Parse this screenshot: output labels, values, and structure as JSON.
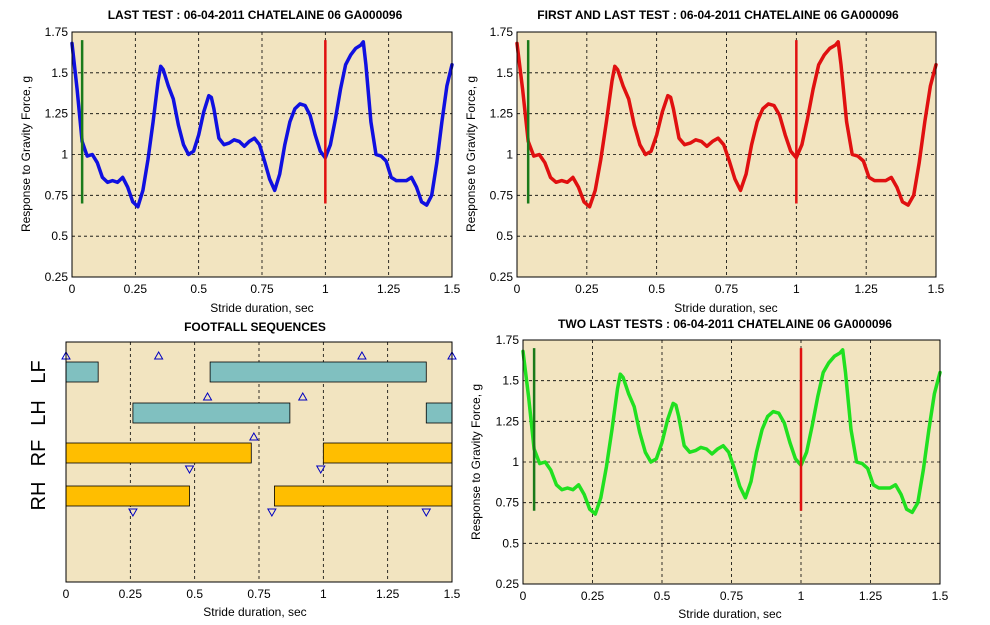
{
  "figure": {
    "background": "#ffffff",
    "plot_bg": "#f2e4c0",
    "grid_color": "#000000"
  },
  "chart_data": [
    {
      "id": "c1",
      "type": "line",
      "title": "LAST TEST : 06-04-2011 CHATELAINE 06 GA000096",
      "xlabel": "Stride duration, sec",
      "ylabel": "Response to Gravity Force, g",
      "xlim": [
        0,
        1.5
      ],
      "ylim": [
        0.25,
        1.75
      ],
      "xticks": [
        0,
        0.25,
        0.5,
        0.75,
        1,
        1.25,
        1.5
      ],
      "xtick_labels": [
        "0",
        "0.25",
        "0.5",
        "0.75",
        "1",
        "1.25",
        "1.5"
      ],
      "yticks": [
        0.25,
        0.5,
        0.75,
        1,
        1.25,
        1.5,
        1.75
      ],
      "ytick_labels": [
        "0.25",
        "0.5",
        "0.75",
        "1",
        "1.25",
        "1.5",
        "1.75"
      ],
      "grid": true,
      "series_color": "#1010e0",
      "markers": [
        {
          "x": 0.04,
          "y0": 0.7,
          "y1": 1.7,
          "color": "#1a7a1a"
        },
        {
          "x": 1.0,
          "y0": 0.7,
          "y1": 1.7,
          "color": "#e01010"
        }
      ]
    },
    {
      "id": "c2",
      "type": "line",
      "title": "FIRST AND LAST TEST : 06-04-2011 CHATELAINE 06 GA000096",
      "xlabel": "Stride duration, sec",
      "ylabel": "Response to Gravity Force, g",
      "xlim": [
        0,
        1.5
      ],
      "ylim": [
        0.25,
        1.75
      ],
      "xticks": [
        0,
        0.25,
        0.5,
        0.75,
        1,
        1.25,
        1.5
      ],
      "xtick_labels": [
        "0",
        "0.25",
        "0.5",
        "0.75",
        "1",
        "1.25",
        "1.5"
      ],
      "yticks": [
        0.25,
        0.5,
        0.75,
        1,
        1.25,
        1.5,
        1.75
      ],
      "ytick_labels": [
        "0.25",
        "0.5",
        "0.75",
        "1",
        "1.25",
        "1.5",
        "1.75"
      ],
      "grid": true,
      "series_color": "#e01010",
      "markers": [
        {
          "x": 0.04,
          "y0": 0.7,
          "y1": 1.7,
          "color": "#1a7a1a"
        },
        {
          "x": 1.0,
          "y0": 0.7,
          "y1": 1.7,
          "color": "#e01010"
        }
      ]
    },
    {
      "id": "c3",
      "type": "bar",
      "title": "FOOTFALL SEQUENCES",
      "xlabel": "Stride duration, sec",
      "xlim": [
        0,
        1.5
      ],
      "xticks": [
        0,
        0.25,
        0.5,
        0.75,
        1,
        1.25,
        1.5
      ],
      "xtick_labels": [
        "0",
        "0.25",
        "0.5",
        "0.75",
        "1",
        "1.25",
        "1.5"
      ],
      "grid": true,
      "rows": [
        {
          "label": "LF",
          "color": "#80c0c0",
          "bars": [
            [
              0.0,
              0.125
            ],
            [
              0.56,
              1.4
            ]
          ],
          "up_marks": [
            0.0,
            0.36,
            1.15,
            1.5
          ],
          "down_marks": []
        },
        {
          "label": "LH",
          "color": "#80c0c0",
          "bars": [
            [
              0.26,
              0.87
            ],
            [
              1.4,
              1.5
            ]
          ],
          "up_marks": [
            0.55,
            0.92
          ],
          "down_marks": []
        },
        {
          "label": "RF",
          "color": "#ffbe00",
          "bars": [
            [
              0.0,
              0.72
            ],
            [
              1.0,
              1.5
            ]
          ],
          "up_marks": [
            0.73
          ],
          "down_marks": [
            0.48,
            0.99
          ]
        },
        {
          "label": "RH",
          "color": "#ffbe00",
          "bars": [
            [
              0.0,
              0.48
            ],
            [
              0.81,
              1.5
            ]
          ],
          "up_marks": [],
          "down_marks": [
            0.26,
            0.8,
            1.4
          ]
        }
      ]
    },
    {
      "id": "c4",
      "type": "line",
      "title": "TWO LAST TESTS : 06-04-2011 CHATELAINE 06 GA000096",
      "xlabel": "Stride duration, sec",
      "ylabel": "Response to Gravity Force, g",
      "xlim": [
        0,
        1.5
      ],
      "ylim": [
        0.25,
        1.75
      ],
      "xticks": [
        0,
        0.25,
        0.5,
        0.75,
        1,
        1.25,
        1.5
      ],
      "xtick_labels": [
        "0",
        "0.25",
        "0.5",
        "0.75",
        "1",
        "1.25",
        "1.5"
      ],
      "yticks": [
        0.25,
        0.5,
        0.75,
        1,
        1.25,
        1.5,
        1.75
      ],
      "ytick_labels": [
        "0.25",
        "0.5",
        "0.75",
        "1",
        "1.25",
        "1.5",
        "1.75"
      ],
      "grid": true,
      "series_color": "#20e020",
      "markers": [
        {
          "x": 0.04,
          "y0": 0.7,
          "y1": 1.7,
          "color": "#1a7a1a"
        },
        {
          "x": 1.0,
          "y0": 0.7,
          "y1": 1.7,
          "color": "#e01010"
        }
      ]
    }
  ],
  "signal": {
    "x": [
      0,
      0.02,
      0.04,
      0.06,
      0.08,
      0.1,
      0.12,
      0.14,
      0.16,
      0.18,
      0.2,
      0.22,
      0.24,
      0.26,
      0.28,
      0.3,
      0.32,
      0.34,
      0.35,
      0.36,
      0.38,
      0.4,
      0.42,
      0.44,
      0.46,
      0.48,
      0.5,
      0.52,
      0.54,
      0.55,
      0.56,
      0.58,
      0.6,
      0.62,
      0.64,
      0.66,
      0.68,
      0.7,
      0.72,
      0.74,
      0.76,
      0.78,
      0.8,
      0.82,
      0.84,
      0.86,
      0.88,
      0.9,
      0.92,
      0.94,
      0.96,
      0.98,
      1.0,
      1.02,
      1.04,
      1.06,
      1.08,
      1.1,
      1.12,
      1.14,
      1.15,
      1.16,
      1.18,
      1.2,
      1.22,
      1.24,
      1.26,
      1.28,
      1.3,
      1.32,
      1.34,
      1.36,
      1.38,
      1.4,
      1.42,
      1.44,
      1.46,
      1.48,
      1.5
    ],
    "y": [
      1.68,
      1.4,
      1.08,
      0.99,
      1.0,
      0.95,
      0.86,
      0.83,
      0.84,
      0.83,
      0.86,
      0.8,
      0.71,
      0.68,
      0.78,
      0.97,
      1.2,
      1.45,
      1.54,
      1.52,
      1.42,
      1.34,
      1.18,
      1.06,
      1.0,
      1.02,
      1.12,
      1.26,
      1.36,
      1.35,
      1.28,
      1.1,
      1.06,
      1.07,
      1.09,
      1.08,
      1.05,
      1.08,
      1.1,
      1.06,
      0.96,
      0.85,
      0.78,
      0.88,
      1.06,
      1.2,
      1.28,
      1.31,
      1.3,
      1.24,
      1.12,
      1.02,
      0.98,
      1.06,
      1.22,
      1.4,
      1.55,
      1.61,
      1.65,
      1.67,
      1.69,
      1.55,
      1.2,
      1.0,
      0.99,
      0.96,
      0.86,
      0.84,
      0.84,
      0.84,
      0.86,
      0.8,
      0.71,
      0.69,
      0.75,
      0.95,
      1.2,
      1.42,
      1.55
    ]
  }
}
